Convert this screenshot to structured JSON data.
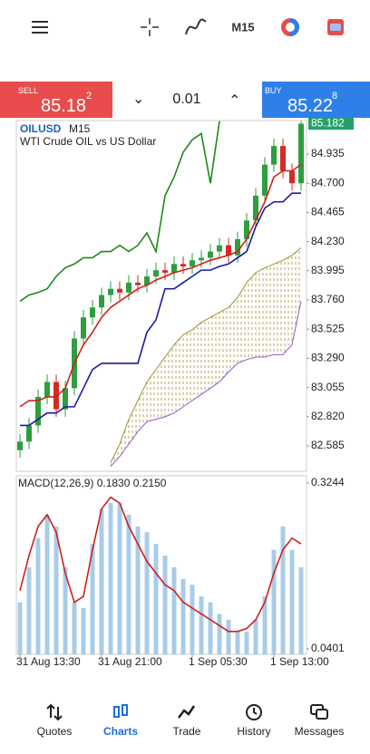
{
  "toolbar": {
    "timeframe": "M15"
  },
  "trade_bar": {
    "sell": {
      "label": "SELL",
      "price": "85.18",
      "pip": "2"
    },
    "volume": "0.01",
    "buy": {
      "label": "BUY",
      "price": "85.22",
      "pip": "8"
    }
  },
  "chart_data": [
    {
      "type": "candlestick",
      "symbol": "OILUSD",
      "timeframe": "M15",
      "description": "WTI Crude OIL vs US Dollar",
      "open": [
        82.55,
        82.62,
        82.75,
        82.98,
        83.1,
        82.88,
        83.05,
        83.45,
        83.62,
        83.7,
        83.8,
        83.85,
        83.82,
        83.9,
        83.88,
        83.95,
        84.0,
        83.98,
        84.05,
        84.03,
        84.08,
        84.1,
        84.15,
        84.2,
        84.12,
        84.25,
        84.4,
        84.6,
        84.85,
        85.0,
        84.8,
        84.7
      ],
      "high": [
        82.68,
        82.81,
        83.04,
        83.16,
        83.16,
        83.11,
        83.51,
        83.68,
        83.76,
        83.86,
        83.91,
        83.91,
        83.96,
        83.96,
        84.01,
        84.06,
        84.06,
        84.11,
        84.11,
        84.14,
        84.16,
        84.21,
        84.26,
        84.26,
        84.31,
        84.46,
        84.66,
        84.91,
        85.06,
        85.06,
        84.86,
        85.2
      ],
      "low": [
        82.49,
        82.56,
        82.69,
        82.92,
        82.82,
        82.82,
        82.99,
        83.39,
        83.56,
        83.64,
        83.74,
        83.76,
        83.76,
        83.82,
        83.82,
        83.89,
        83.92,
        83.92,
        83.97,
        83.97,
        84.02,
        84.04,
        84.09,
        84.06,
        84.06,
        84.19,
        84.34,
        84.54,
        84.79,
        84.74,
        84.64,
        84.64
      ],
      "close": [
        82.62,
        82.75,
        82.98,
        83.1,
        82.88,
        83.05,
        83.45,
        83.62,
        83.7,
        83.8,
        83.85,
        83.82,
        83.9,
        83.88,
        83.95,
        84.0,
        83.98,
        84.05,
        84.03,
        84.08,
        84.1,
        84.15,
        84.2,
        84.12,
        84.25,
        84.4,
        84.6,
        84.85,
        85.0,
        84.8,
        84.7,
        85.18
      ],
      "up_color": "#2e9e3e",
      "down_color": "#d42a22",
      "series": [
        {
          "color": "#d0201a",
          "values": [
            82.9,
            82.95,
            82.95,
            82.98,
            82.98,
            83.05,
            83.25,
            83.4,
            83.5,
            83.62,
            83.7,
            83.75,
            83.8,
            83.85,
            83.88,
            83.92,
            83.95,
            83.98,
            84.0,
            84.02,
            84.05,
            84.08,
            84.1,
            84.12,
            84.15,
            84.25,
            84.4,
            84.55,
            84.75,
            84.8,
            84.8,
            84.85
          ]
        },
        {
          "color": "#1a1aa8",
          "values": [
            82.75,
            82.75,
            82.8,
            82.85,
            82.85,
            82.9,
            82.9,
            83.05,
            83.2,
            83.25,
            83.25,
            83.25,
            83.25,
            83.25,
            83.5,
            83.6,
            83.85,
            83.85,
            83.9,
            83.95,
            84.0,
            84.0,
            84.03,
            84.05,
            84.1,
            84.15,
            84.35,
            84.5,
            84.55,
            84.55,
            84.62,
            84.62
          ]
        },
        {
          "color": "#1a8a1a",
          "values": [
            83.75,
            83.8,
            83.82,
            83.85,
            83.95,
            84.02,
            84.05,
            84.1,
            84.1,
            84.15,
            84.15,
            84.2,
            84.15,
            84.2,
            84.3,
            84.15,
            84.6,
            84.75,
            84.95,
            85.05,
            85.1,
            84.7,
            85.2,
            null,
            null,
            null,
            null,
            null,
            null,
            null,
            null,
            null
          ]
        }
      ],
      "cloud": {
        "upper": {
          "color": "#a09030",
          "values": [
            null,
            null,
            null,
            null,
            null,
            null,
            null,
            null,
            null,
            null,
            82.45,
            82.6,
            82.8,
            82.95,
            83.1,
            83.2,
            83.3,
            83.4,
            83.48,
            83.52,
            83.58,
            83.62,
            83.66,
            83.7,
            83.78,
            83.9,
            83.98,
            84.02,
            84.05,
            84.08,
            84.12,
            84.18
          ]
        },
        "lower": {
          "color": "#8a5ac8",
          "values": [
            null,
            null,
            null,
            null,
            null,
            null,
            null,
            null,
            null,
            null,
            82.42,
            82.5,
            82.6,
            82.7,
            82.78,
            82.8,
            82.82,
            82.85,
            82.9,
            82.95,
            83.0,
            83.05,
            83.1,
            83.18,
            83.25,
            83.28,
            83.3,
            83.3,
            83.32,
            83.32,
            83.4,
            83.75
          ]
        }
      },
      "ylim": [
        82.381,
        85.205
      ],
      "yticks": [
        {
          "value": 84.935,
          "label": "84.935"
        },
        {
          "value": 84.7,
          "label": "84.700"
        },
        {
          "value": 84.465,
          "label": "84.465"
        },
        {
          "value": 84.23,
          "label": "84.230"
        },
        {
          "value": 83.995,
          "label": "83.995"
        },
        {
          "value": 83.76,
          "label": "83.760"
        },
        {
          "value": 83.525,
          "label": "83.525"
        },
        {
          "value": 83.29,
          "label": "83.290"
        },
        {
          "value": 83.055,
          "label": "83.055"
        },
        {
          "value": 82.82,
          "label": "82.820"
        },
        {
          "value": 82.585,
          "label": "82.585"
        }
      ],
      "last_price": 85.182,
      "last_price_color": "#26a069",
      "xticks": [
        {
          "value": 0,
          "label": "31 Aug 13:30"
        },
        {
          "value": 9,
          "label": "31 Aug 21:00"
        },
        {
          "value": 19,
          "label": "1 Sep 05:30"
        },
        {
          "value": 28,
          "label": "1 Sep 13:00"
        }
      ]
    },
    {
      "type": "macd",
      "title": "MACD(12,26,9) 0.1830 0.2150",
      "values": [
        0.12,
        0.18,
        0.23,
        0.27,
        0.25,
        0.18,
        0.12,
        0.11,
        0.22,
        0.28,
        0.29,
        0.29,
        0.27,
        0.25,
        0.24,
        0.22,
        0.2,
        0.18,
        0.16,
        0.15,
        0.13,
        0.12,
        0.1,
        0.09,
        0.07,
        0.07,
        0.09,
        0.13,
        0.21,
        0.25,
        0.21,
        0.18
      ],
      "color": "#a8cce8",
      "series": [
        {
          "color": "#d0201a",
          "values": [
            0.14,
            0.2,
            0.25,
            0.27,
            0.24,
            0.17,
            0.12,
            0.13,
            0.21,
            0.28,
            0.3,
            0.29,
            0.25,
            0.22,
            0.19,
            0.17,
            0.15,
            0.14,
            0.12,
            0.11,
            0.1,
            0.09,
            0.08,
            0.07,
            0.07,
            0.075,
            0.09,
            0.12,
            0.17,
            0.21,
            0.23,
            0.22
          ]
        }
      ],
      "ylim": [
        0.0308,
        0.3368
      ],
      "yticks": [
        0.3244,
        0.0401
      ]
    }
  ],
  "nav": {
    "items": [
      "Quotes",
      "Charts",
      "Trade",
      "History",
      "Messages"
    ],
    "active": 1
  }
}
